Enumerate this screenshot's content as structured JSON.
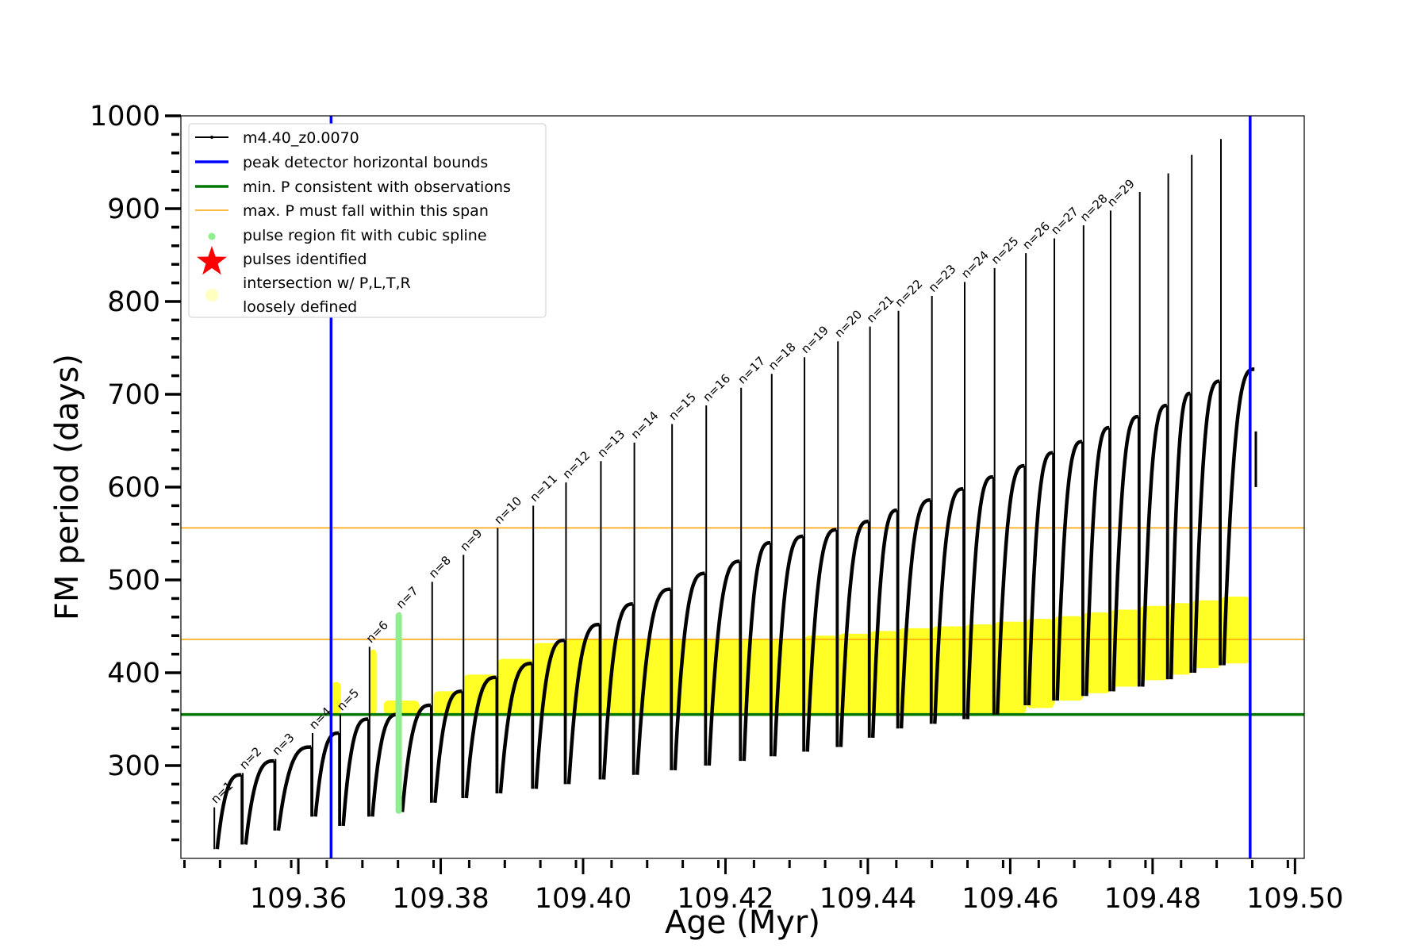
{
  "chart_data": {
    "type": "line",
    "xlabel": "Age (Myr)",
    "ylabel": "FM period (days)",
    "xlim": [
      109.3435,
      109.5013
    ],
    "ylim": [
      200,
      1000
    ],
    "x_ticks": [
      109.36,
      109.38,
      109.4,
      109.42,
      109.44,
      109.46,
      109.48,
      109.5
    ],
    "x_tick_labels": [
      "109.36",
      "109.38",
      "109.40",
      "109.42",
      "109.44",
      "109.46",
      "109.48",
      "109.50"
    ],
    "y_ticks": [
      300,
      400,
      500,
      600,
      700,
      800,
      900,
      1000
    ],
    "y_tick_labels": [
      "300",
      "400",
      "500",
      "600",
      "700",
      "800",
      "900",
      "1000"
    ],
    "grid": false,
    "legend_position": "top-left",
    "legend": [
      {
        "label": "m4.40_z0.0070",
        "kind": "line-marker",
        "color": "#000000"
      },
      {
        "label": "peak detector horizontal bounds",
        "kind": "line",
        "color": "#0000ff"
      },
      {
        "label": "min. P consistent with observations",
        "kind": "line",
        "color": "#007700"
      },
      {
        "label": "max. P must fall within this span",
        "kind": "thin-line",
        "color": "#ffa500"
      },
      {
        "label": "pulse region fit with cubic spline",
        "kind": "dot",
        "color": "#90ee90"
      },
      {
        "label": "pulses identified",
        "kind": "star",
        "color": "#ff0000"
      },
      {
        "label": "intersection w/ P,L,T,R",
        "label2": "loosely defined",
        "kind": "pale-dot",
        "color": "#ffffc0"
      }
    ],
    "blue_vertical_lines_x": [
      109.3646,
      109.4937
    ],
    "green_horizontal_y": 355,
    "orange_horizontal_y": [
      436,
      556
    ],
    "pulses": [
      {
        "label": "n=1",
        "age": 109.3482,
        "top": 255,
        "start": 210,
        "end": 290
      },
      {
        "label": "n=2",
        "age": 109.3522,
        "top": 292,
        "start": 215,
        "end": 305
      },
      {
        "label": "n=3",
        "age": 109.3568,
        "top": 307,
        "start": 230,
        "end": 320
      },
      {
        "label": "n=4",
        "age": 109.362,
        "top": 335,
        "start": 245,
        "end": 335
      },
      {
        "label": "n=5",
        "age": 109.3659,
        "top": 355,
        "start": 235,
        "end": 350
      },
      {
        "label": "n=6",
        "age": 109.37,
        "top": 428,
        "start": 245,
        "end": 355
      },
      {
        "label": "n=7",
        "age": 109.3742,
        "top": 465,
        "start": 250,
        "end": 365
      },
      {
        "label": "n=8",
        "age": 109.3788,
        "top": 498,
        "start": 260,
        "end": 380
      },
      {
        "label": "n=9",
        "age": 109.3832,
        "top": 527,
        "start": 265,
        "end": 395
      },
      {
        "label": "n=10",
        "age": 109.388,
        "top": 556,
        "start": 270,
        "end": 410
      },
      {
        "label": "n=11",
        "age": 109.393,
        "top": 580,
        "start": 275,
        "end": 435
      },
      {
        "label": "n=12",
        "age": 109.3976,
        "top": 605,
        "start": 280,
        "end": 452
      },
      {
        "label": "n=13",
        "age": 109.4025,
        "top": 628,
        "start": 285,
        "end": 474
      },
      {
        "label": "n=14",
        "age": 109.4072,
        "top": 648,
        "start": 290,
        "end": 490
      },
      {
        "label": "n=15",
        "age": 109.4125,
        "top": 668,
        "start": 295,
        "end": 507
      },
      {
        "label": "n=16",
        "age": 109.4173,
        "top": 688,
        "start": 300,
        "end": 520
      },
      {
        "label": "n=17",
        "age": 109.4222,
        "top": 707,
        "start": 305,
        "end": 540
      },
      {
        "label": "n=18",
        "age": 109.4265,
        "top": 722,
        "start": 310,
        "end": 547
      },
      {
        "label": "n=19",
        "age": 109.4311,
        "top": 740,
        "start": 315,
        "end": 554
      },
      {
        "label": "n=20",
        "age": 109.4358,
        "top": 757,
        "start": 320,
        "end": 563
      },
      {
        "label": "n=21",
        "age": 109.4403,
        "top": 773,
        "start": 330,
        "end": 575
      },
      {
        "label": "n=22",
        "age": 109.4443,
        "top": 790,
        "start": 340,
        "end": 586
      },
      {
        "label": "n=23",
        "age": 109.449,
        "top": 806,
        "start": 345,
        "end": 598
      },
      {
        "label": "n=24",
        "age": 109.4536,
        "top": 821,
        "start": 350,
        "end": 611
      },
      {
        "label": "n=25",
        "age": 109.4578,
        "top": 836,
        "start": 355,
        "end": 623
      },
      {
        "label": "n=26",
        "age": 109.4622,
        "top": 852,
        "start": 365,
        "end": 637
      },
      {
        "label": "n=27",
        "age": 109.4662,
        "top": 868,
        "start": 370,
        "end": 649
      },
      {
        "label": "n=28",
        "age": 109.4703,
        "top": 882,
        "start": 375,
        "end": 664
      },
      {
        "label": "n=29",
        "age": 109.4741,
        "top": 898,
        "start": 380,
        "end": 676
      }
    ],
    "extra_pulses_unlabeled": [
      {
        "age": 109.4782,
        "top": 918,
        "start": 385,
        "end": 688
      },
      {
        "age": 109.4822,
        "top": 938,
        "start": 393,
        "end": 701
      },
      {
        "age": 109.4855,
        "top": 958,
        "start": 400,
        "end": 714
      },
      {
        "age": 109.4896,
        "top": 975,
        "start": 408,
        "end": 727
      }
    ],
    "green_pulse_region": {
      "age": 109.3741,
      "ymin": 248,
      "ymax": 465
    },
    "yellow_regions": [
      {
        "x0": 109.3646,
        "x1": 109.366,
        "ymin": 355,
        "ymax": 390
      },
      {
        "x0": 109.37,
        "x1": 109.371,
        "ymin": 355,
        "ymax": 425
      },
      {
        "x0": 109.372,
        "x1": 109.377,
        "ymin": 355,
        "ymax": 370
      },
      {
        "x0": 109.379,
        "x1": 109.3832,
        "ymin": 355,
        "ymax": 380
      },
      {
        "x0": 109.3832,
        "x1": 109.388,
        "ymin": 355,
        "ymax": 398
      },
      {
        "x0": 109.388,
        "x1": 109.393,
        "ymin": 355,
        "ymax": 415
      },
      {
        "x0": 109.393,
        "x1": 109.3976,
        "ymin": 355,
        "ymax": 432
      },
      {
        "x0": 109.3976,
        "x1": 109.4025,
        "ymin": 355,
        "ymax": 436
      },
      {
        "x0": 109.4025,
        "x1": 109.4072,
        "ymin": 355,
        "ymax": 436
      },
      {
        "x0": 109.4072,
        "x1": 109.4125,
        "ymin": 355,
        "ymax": 436
      },
      {
        "x0": 109.4125,
        "x1": 109.4173,
        "ymin": 355,
        "ymax": 436
      },
      {
        "x0": 109.4173,
        "x1": 109.4222,
        "ymin": 355,
        "ymax": 436
      },
      {
        "x0": 109.4222,
        "x1": 109.4265,
        "ymin": 355,
        "ymax": 436
      },
      {
        "x0": 109.4265,
        "x1": 109.4311,
        "ymin": 355,
        "ymax": 436
      },
      {
        "x0": 109.4311,
        "x1": 109.4358,
        "ymin": 355,
        "ymax": 440
      },
      {
        "x0": 109.4358,
        "x1": 109.4403,
        "ymin": 355,
        "ymax": 442
      },
      {
        "x0": 109.4403,
        "x1": 109.4443,
        "ymin": 355,
        "ymax": 445
      },
      {
        "x0": 109.4443,
        "x1": 109.449,
        "ymin": 355,
        "ymax": 448
      },
      {
        "x0": 109.449,
        "x1": 109.4536,
        "ymin": 355,
        "ymax": 450
      },
      {
        "x0": 109.4536,
        "x1": 109.4578,
        "ymin": 355,
        "ymax": 452
      },
      {
        "x0": 109.4578,
        "x1": 109.4622,
        "ymin": 355,
        "ymax": 455
      },
      {
        "x0": 109.4622,
        "x1": 109.4662,
        "ymin": 362,
        "ymax": 458
      },
      {
        "x0": 109.4662,
        "x1": 109.4703,
        "ymin": 370,
        "ymax": 461
      },
      {
        "x0": 109.4703,
        "x1": 109.4741,
        "ymin": 378,
        "ymax": 465
      },
      {
        "x0": 109.4741,
        "x1": 109.4782,
        "ymin": 385,
        "ymax": 468
      },
      {
        "x0": 109.4782,
        "x1": 109.4822,
        "ymin": 392,
        "ymax": 472
      },
      {
        "x0": 109.4822,
        "x1": 109.4855,
        "ymin": 398,
        "ymax": 475
      },
      {
        "x0": 109.4855,
        "x1": 109.4896,
        "ymin": 405,
        "ymax": 478
      },
      {
        "x0": 109.4896,
        "x1": 109.4937,
        "ymin": 410,
        "ymax": 482
      }
    ]
  }
}
